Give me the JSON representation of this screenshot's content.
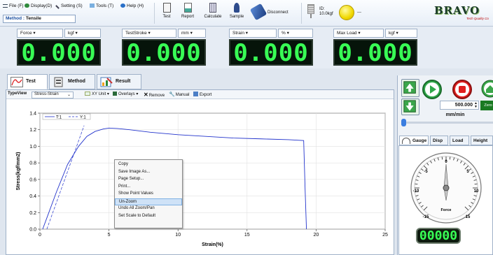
{
  "menu": [
    {
      "label": "File (F)",
      "icon": "list-icon"
    },
    {
      "label": "Display(D)",
      "icon": "display-icon"
    },
    {
      "label": "Setting (S)",
      "icon": "wrench-icon"
    },
    {
      "label": "Tools (T)",
      "icon": "tools-icon"
    },
    {
      "label": "Help (H)",
      "icon": "help-icon"
    }
  ],
  "method": {
    "label": "Method :",
    "value": "Tensile"
  },
  "toolbar": {
    "test": "Test",
    "report": "Report",
    "calculate": "Calculate",
    "sample": "Sample",
    "disconnect": "Disconnect",
    "id_label": "ID:",
    "id_value": "10.0kgf",
    "status_text": "---"
  },
  "brand": {
    "name": "BRAVO",
    "tagline": "Tech Quality Co"
  },
  "readouts": [
    {
      "name": "Force",
      "unit": "kgf",
      "value": "0.000"
    },
    {
      "name": "TestStroke",
      "unit": "mm",
      "value": "0.000"
    },
    {
      "name": "Strain",
      "unit": "%",
      "value": "0.000"
    },
    {
      "name": "Max Load",
      "unit": "kgf",
      "value": "0.000"
    }
  ],
  "tabs": {
    "test": "Test",
    "method": "Method",
    "result": "Result"
  },
  "chart_toolbar": {
    "typeview_label": "TypeView",
    "typeview_value": "Stress-Strain",
    "xy_unit": "XY Unit",
    "overlays": "Overlays",
    "remove": "Remove",
    "manual": "Manual",
    "export": "Export"
  },
  "chart_data": {
    "type": "line",
    "xlabel": "Strain(%)",
    "ylabel": "Stress(kgf/mm2)",
    "xlim": [
      0,
      25
    ],
    "ylim": [
      0,
      1.4
    ],
    "xticks": [
      0,
      5,
      10,
      15,
      20,
      25
    ],
    "yticks": [
      0.0,
      0.2,
      0.4,
      0.6,
      0.8,
      1.0,
      1.2,
      1.4
    ],
    "grid": true,
    "legend": "top-left",
    "series": [
      {
        "name": "T:1",
        "style": "solid",
        "color": "#2233cc",
        "x": [
          0.2,
          0.6,
          1.2,
          2.0,
          2.8,
          3.4,
          4.0,
          4.6,
          5.0,
          5.6,
          6.5,
          8.0,
          10.0,
          12.0,
          14.0,
          16.0,
          18.0,
          19.1,
          19.2,
          19.3
        ],
        "y": [
          0.0,
          0.18,
          0.45,
          0.78,
          1.0,
          1.12,
          1.18,
          1.21,
          1.22,
          1.215,
          1.2,
          1.17,
          1.14,
          1.12,
          1.1,
          1.09,
          1.08,
          1.07,
          0.5,
          0.0
        ]
      },
      {
        "name": "Y:1",
        "style": "dashed",
        "color": "#2233cc",
        "x": [
          0.5,
          3.2
        ],
        "y": [
          0.0,
          1.25
        ]
      }
    ]
  },
  "context_menu": [
    "Copy",
    "Save Image As...",
    "Page Setup...",
    "Print...",
    "Show Point Values",
    "Un-Zoom",
    "Undo All Zoom/Pan",
    "Set Scale to Default"
  ],
  "control": {
    "speed": "500.000",
    "speed_unit": "mm/min",
    "zero": "Zero"
  },
  "gauge_tabs": [
    "Gauge",
    "Disp",
    "Load",
    "Height"
  ],
  "gauge": {
    "ticks": [
      "-5",
      "0",
      "5",
      "10",
      "-10",
      "-15",
      "15"
    ],
    "label": "Force",
    "display": "00000"
  }
}
